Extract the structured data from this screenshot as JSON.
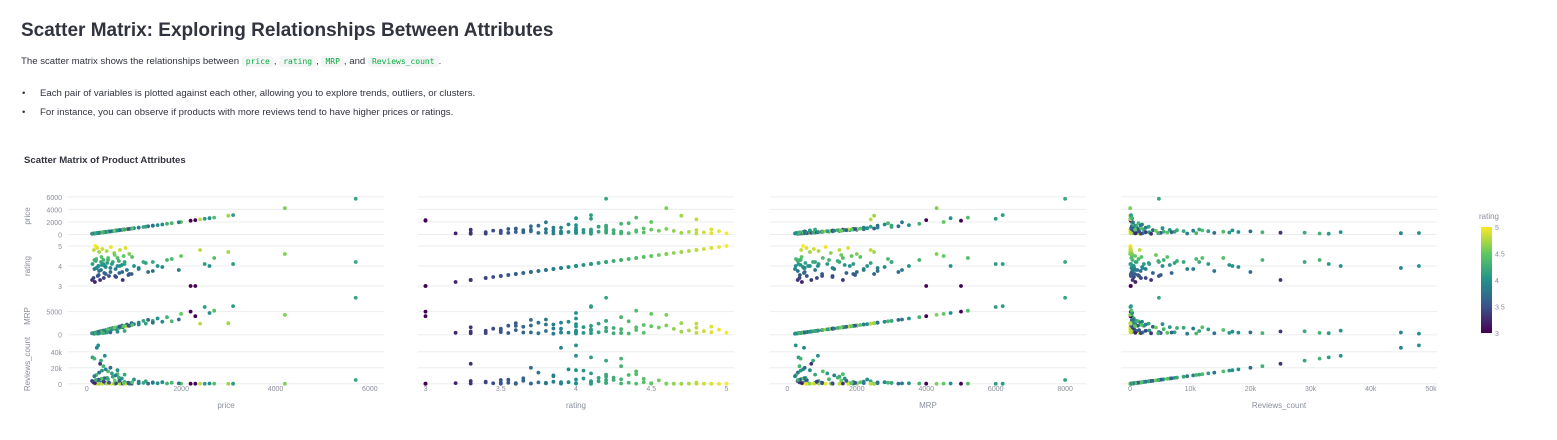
{
  "page": {
    "heading": "Scatter Matrix: Exploring Relationships Between Attributes",
    "intro_prefix": "The scatter matrix shows the relationships between",
    "intro_vars": [
      "price",
      "rating",
      "MRP",
      "Reviews_count"
    ],
    "intro_sep1": ",",
    "intro_sep2": ",",
    "intro_and": ", and",
    "intro_end": ".",
    "bullets": [
      "Each pair of variables is plotted against each other, allowing you to explore trends, outliers, or clusters.",
      "For instance, you can observe if products with more reviews tend to have higher prices or ratings."
    ]
  },
  "chart_data": {
    "type": "scatter",
    "title": "Scatter Matrix of Product Attributes",
    "dimensions": [
      "price",
      "rating",
      "MRP",
      "Reviews_count"
    ],
    "color_by": "rating",
    "colorscale": "Viridis",
    "colors": {
      "low": "#440154",
      "mid": "#21918c",
      "high": "#fde725",
      "grid": "#ebedf0",
      "axis_text": "#8a8f9c"
    },
    "colorbar": {
      "title": "rating",
      "range": [
        3,
        5
      ],
      "ticks": [
        3,
        3.5,
        4,
        4.5,
        5
      ]
    },
    "grid": true,
    "axes": {
      "price": {
        "range": [
          -400,
          6300
        ],
        "ticks": [
          0,
          2000,
          4000,
          6000
        ],
        "tick_labels": [
          "0",
          "2000",
          "4000",
          "6000"
        ],
        "y_ticks": [
          0,
          2000,
          4000,
          6000
        ],
        "y_tick_labels": [
          "0",
          "2000",
          "4000",
          "6000"
        ]
      },
      "rating": {
        "range": [
          2.95,
          5.05
        ],
        "ticks": [
          3,
          3.5,
          4,
          4.5,
          5
        ],
        "tick_labels": [
          "3",
          "3.5",
          "4",
          "4.5",
          "5"
        ],
        "y_ticks": [
          3,
          4,
          5
        ],
        "y_tick_labels": [
          "3",
          "4",
          "5"
        ]
      },
      "MRP": {
        "range": [
          -500,
          8600
        ],
        "ticks": [
          0,
          2000,
          4000,
          6000,
          8000
        ],
        "tick_labels": [
          "0",
          "2000",
          "4000",
          "6000",
          "8000"
        ],
        "y_ticks": [
          0,
          5000
        ],
        "y_tick_labels": [
          "0",
          "5000"
        ]
      },
      "Reviews_count": {
        "range": [
          -1500,
          51000
        ],
        "ticks": [
          0,
          10000,
          20000,
          30000,
          40000,
          50000
        ],
        "tick_labels": [
          "0",
          "10k",
          "20k",
          "30k",
          "40k",
          "50k"
        ],
        "y_ticks": [
          0,
          20000,
          40000
        ],
        "y_tick_labels": [
          "0",
          "20k",
          "40k"
        ]
      }
    },
    "points": [
      [
        199,
        3.9,
        499,
        2100
      ],
      [
        249,
        4.0,
        599,
        450
      ],
      [
        299,
        3.8,
        799,
        1200
      ],
      [
        349,
        4.1,
        899,
        3200
      ],
      [
        399,
        3.6,
        999,
        800
      ],
      [
        449,
        4.3,
        1199,
        5600
      ],
      [
        499,
        3.9,
        1299,
        240
      ],
      [
        549,
        4.2,
        1499,
        8900
      ],
      [
        599,
        3.5,
        1299,
        150
      ],
      [
        649,
        4.4,
        1599,
        12000
      ],
      [
        699,
        4.0,
        1799,
        600
      ],
      [
        749,
        3.7,
        1999,
        400
      ],
      [
        799,
        4.1,
        1899,
        2300
      ],
      [
        849,
        3.8,
        2199,
        900
      ],
      [
        899,
        4.6,
        1999,
        350
      ],
      [
        949,
        3.6,
        2499,
        120
      ],
      [
        999,
        4.0,
        2299,
        5400
      ],
      [
        1099,
        3.9,
        2599,
        700
      ],
      [
        1199,
        4.2,
        2999,
        1100
      ],
      [
        1299,
        3.7,
        3199,
        300
      ],
      [
        150,
        4.8,
        399,
        1600
      ],
      [
        180,
        5.0,
        449,
        80
      ],
      [
        220,
        4.9,
        550,
        60
      ],
      [
        260,
        4.7,
        650,
        150
      ],
      [
        330,
        4.85,
        760,
        95
      ],
      [
        420,
        4.75,
        900,
        220
      ],
      [
        510,
        4.95,
        1100,
        40
      ],
      [
        580,
        4.65,
        1250,
        180
      ],
      [
        700,
        4.8,
        1500,
        75
      ],
      [
        820,
        4.9,
        1750,
        55
      ],
      [
        110,
        3.3,
        299,
        3500
      ],
      [
        140,
        3.4,
        350,
        1800
      ],
      [
        170,
        3.2,
        420,
        900
      ],
      [
        230,
        3.5,
        560,
        4800
      ],
      [
        280,
        3.3,
        690,
        25000
      ],
      [
        360,
        3.4,
        850,
        2600
      ],
      [
        470,
        3.5,
        1000,
        1500
      ],
      [
        620,
        3.45,
        1300,
        650
      ],
      [
        760,
        3.3,
        1600,
        430
      ],
      [
        900,
        3.6,
        1900,
        210
      ],
      [
        120,
        4.1,
        320,
        33000
      ],
      [
        160,
        4.3,
        380,
        31500
      ],
      [
        210,
        3.9,
        480,
        45000
      ],
      [
        300,
        4.2,
        740,
        29000
      ],
      [
        380,
        4.0,
        880,
        35000
      ],
      [
        450,
        4.4,
        1020,
        15500
      ],
      [
        530,
        4.1,
        1150,
        13000
      ],
      [
        610,
        3.85,
        1350,
        10500
      ],
      [
        680,
        4.25,
        1450,
        7800
      ],
      [
        740,
        4.05,
        1650,
        6600
      ],
      [
        1399,
        4.2,
        2999,
        950
      ],
      [
        1499,
        4.0,
        3499,
        620
      ],
      [
        1699,
        4.3,
        3799,
        410
      ],
      [
        1999,
        4.5,
        4499,
        280
      ],
      [
        2199,
        3.0,
        4999,
        120
      ],
      [
        2299,
        3.0,
        3999,
        90
      ],
      [
        2499,
        4.1,
        5999,
        60
      ],
      [
        2999,
        4.7,
        2499,
        45
      ],
      [
        4199,
        4.6,
        4299,
        30
      ],
      [
        5699,
        4.2,
        7999,
        4800
      ],
      [
        1799,
        4.35,
        2899,
        1400
      ],
      [
        1599,
        3.95,
        2799,
        2000
      ],
      [
        1399,
        3.75,
        2599,
        1750
      ],
      [
        1250,
        4.15,
        2399,
        3100
      ],
      [
        1100,
        3.85,
        2199,
        2600
      ],
      [
        960,
        4.45,
        2099,
        1900
      ],
      [
        880,
        3.55,
        1950,
        1300
      ],
      [
        780,
        4.5,
        1850,
        850
      ],
      [
        690,
        3.65,
        1700,
        3800
      ],
      [
        590,
        4.55,
        1550,
        4300
      ],
      [
        400,
        3.95,
        450,
        18000
      ],
      [
        320,
        4.05,
        380,
        16500
      ],
      [
        260,
        3.75,
        300,
        14000
      ],
      [
        200,
        4.35,
        250,
        11000
      ],
      [
        160,
        3.85,
        220,
        9500
      ],
      [
        430,
        4.15,
        520,
        7400
      ],
      [
        370,
        3.65,
        480,
        6900
      ],
      [
        310,
        4.45,
        410,
        6200
      ],
      [
        250,
        3.55,
        360,
        5100
      ],
      [
        190,
        4.25,
        300,
        4700
      ],
      [
        2400,
        4.8,
        2400,
        100
      ],
      [
        2600,
        4.0,
        4700,
        350
      ],
      [
        1950,
        3.8,
        3300,
        500
      ],
      [
        2700,
        4.4,
        5200,
        220
      ],
      [
        3100,
        4.1,
        6200,
        160
      ],
      [
        240,
        4.0,
        240,
        48000
      ],
      [
        350,
        4.3,
        350,
        22000
      ],
      [
        500,
        3.7,
        500,
        20000
      ],
      [
        650,
        4.0,
        650,
        17000
      ],
      [
        800,
        4.2,
        800,
        11500
      ]
    ]
  }
}
